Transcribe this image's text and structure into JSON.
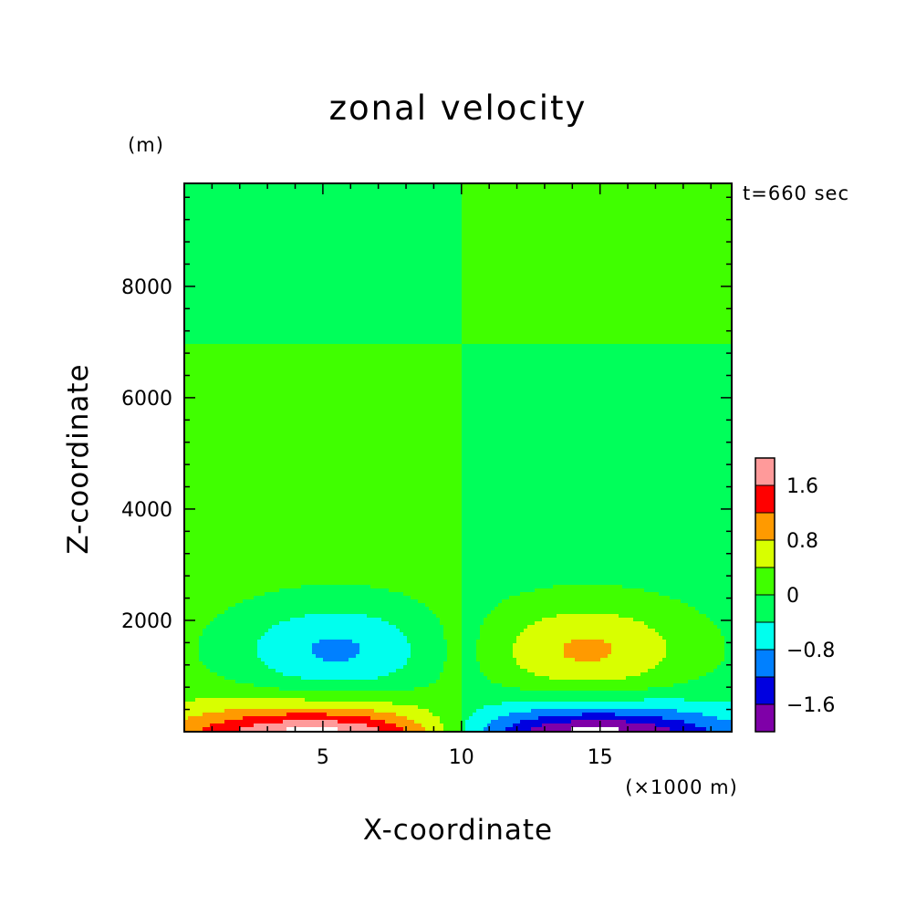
{
  "chart_data": {
    "type": "contour",
    "title": "zonal velocity",
    "xlabel": "X-coordinate",
    "ylabel": "Z-coordinate",
    "x_unit": "(×1000 m)",
    "y_unit": "(m)",
    "time_label": "t=660 sec",
    "xlim": [
      0,
      19.75
    ],
    "ylim": [
      0,
      9850
    ],
    "x_ticks": [
      "5",
      "10",
      "15"
    ],
    "x_tick_values": [
      5,
      10,
      15
    ],
    "y_ticks": [
      "2000",
      "4000",
      "6000",
      "8000"
    ],
    "y_tick_values": [
      2000,
      4000,
      6000,
      8000
    ],
    "contour_levels": [
      -2.0,
      -1.6,
      -1.2,
      -0.8,
      -0.4,
      0,
      0.4,
      0.8,
      1.2,
      1.6,
      2.0
    ],
    "colorbar_labels": [
      "1.6",
      "0.8",
      "0",
      "-0.8",
      "-1.6"
    ],
    "colorbar_label_values": [
      1.6,
      0.8,
      0,
      -0.8,
      -1.6
    ],
    "colors": [
      "#7f00a8",
      "#0000e0",
      "#0080ff",
      "#00ffee",
      "#00ff5a",
      "#40ff00",
      "#d8ff00",
      "#ff9a00",
      "#ff0000",
      "#ff9a9a"
    ],
    "cells": [
      {
        "cx": 5.5,
        "cz": 1450,
        "sx": 3.8,
        "sz": 900,
        "amp": -1.05
      },
      {
        "cx": 14.5,
        "cz": 1450,
        "sx": 3.8,
        "sz": 900,
        "amp": 1.05
      },
      {
        "cx": 5.0,
        "cz": -250,
        "sx": 5.3,
        "sz": 700,
        "amp": 2.45
      },
      {
        "cx": 14.5,
        "cz": -250,
        "sx": 5.3,
        "sz": 700,
        "amp": -2.45
      }
    ]
  }
}
